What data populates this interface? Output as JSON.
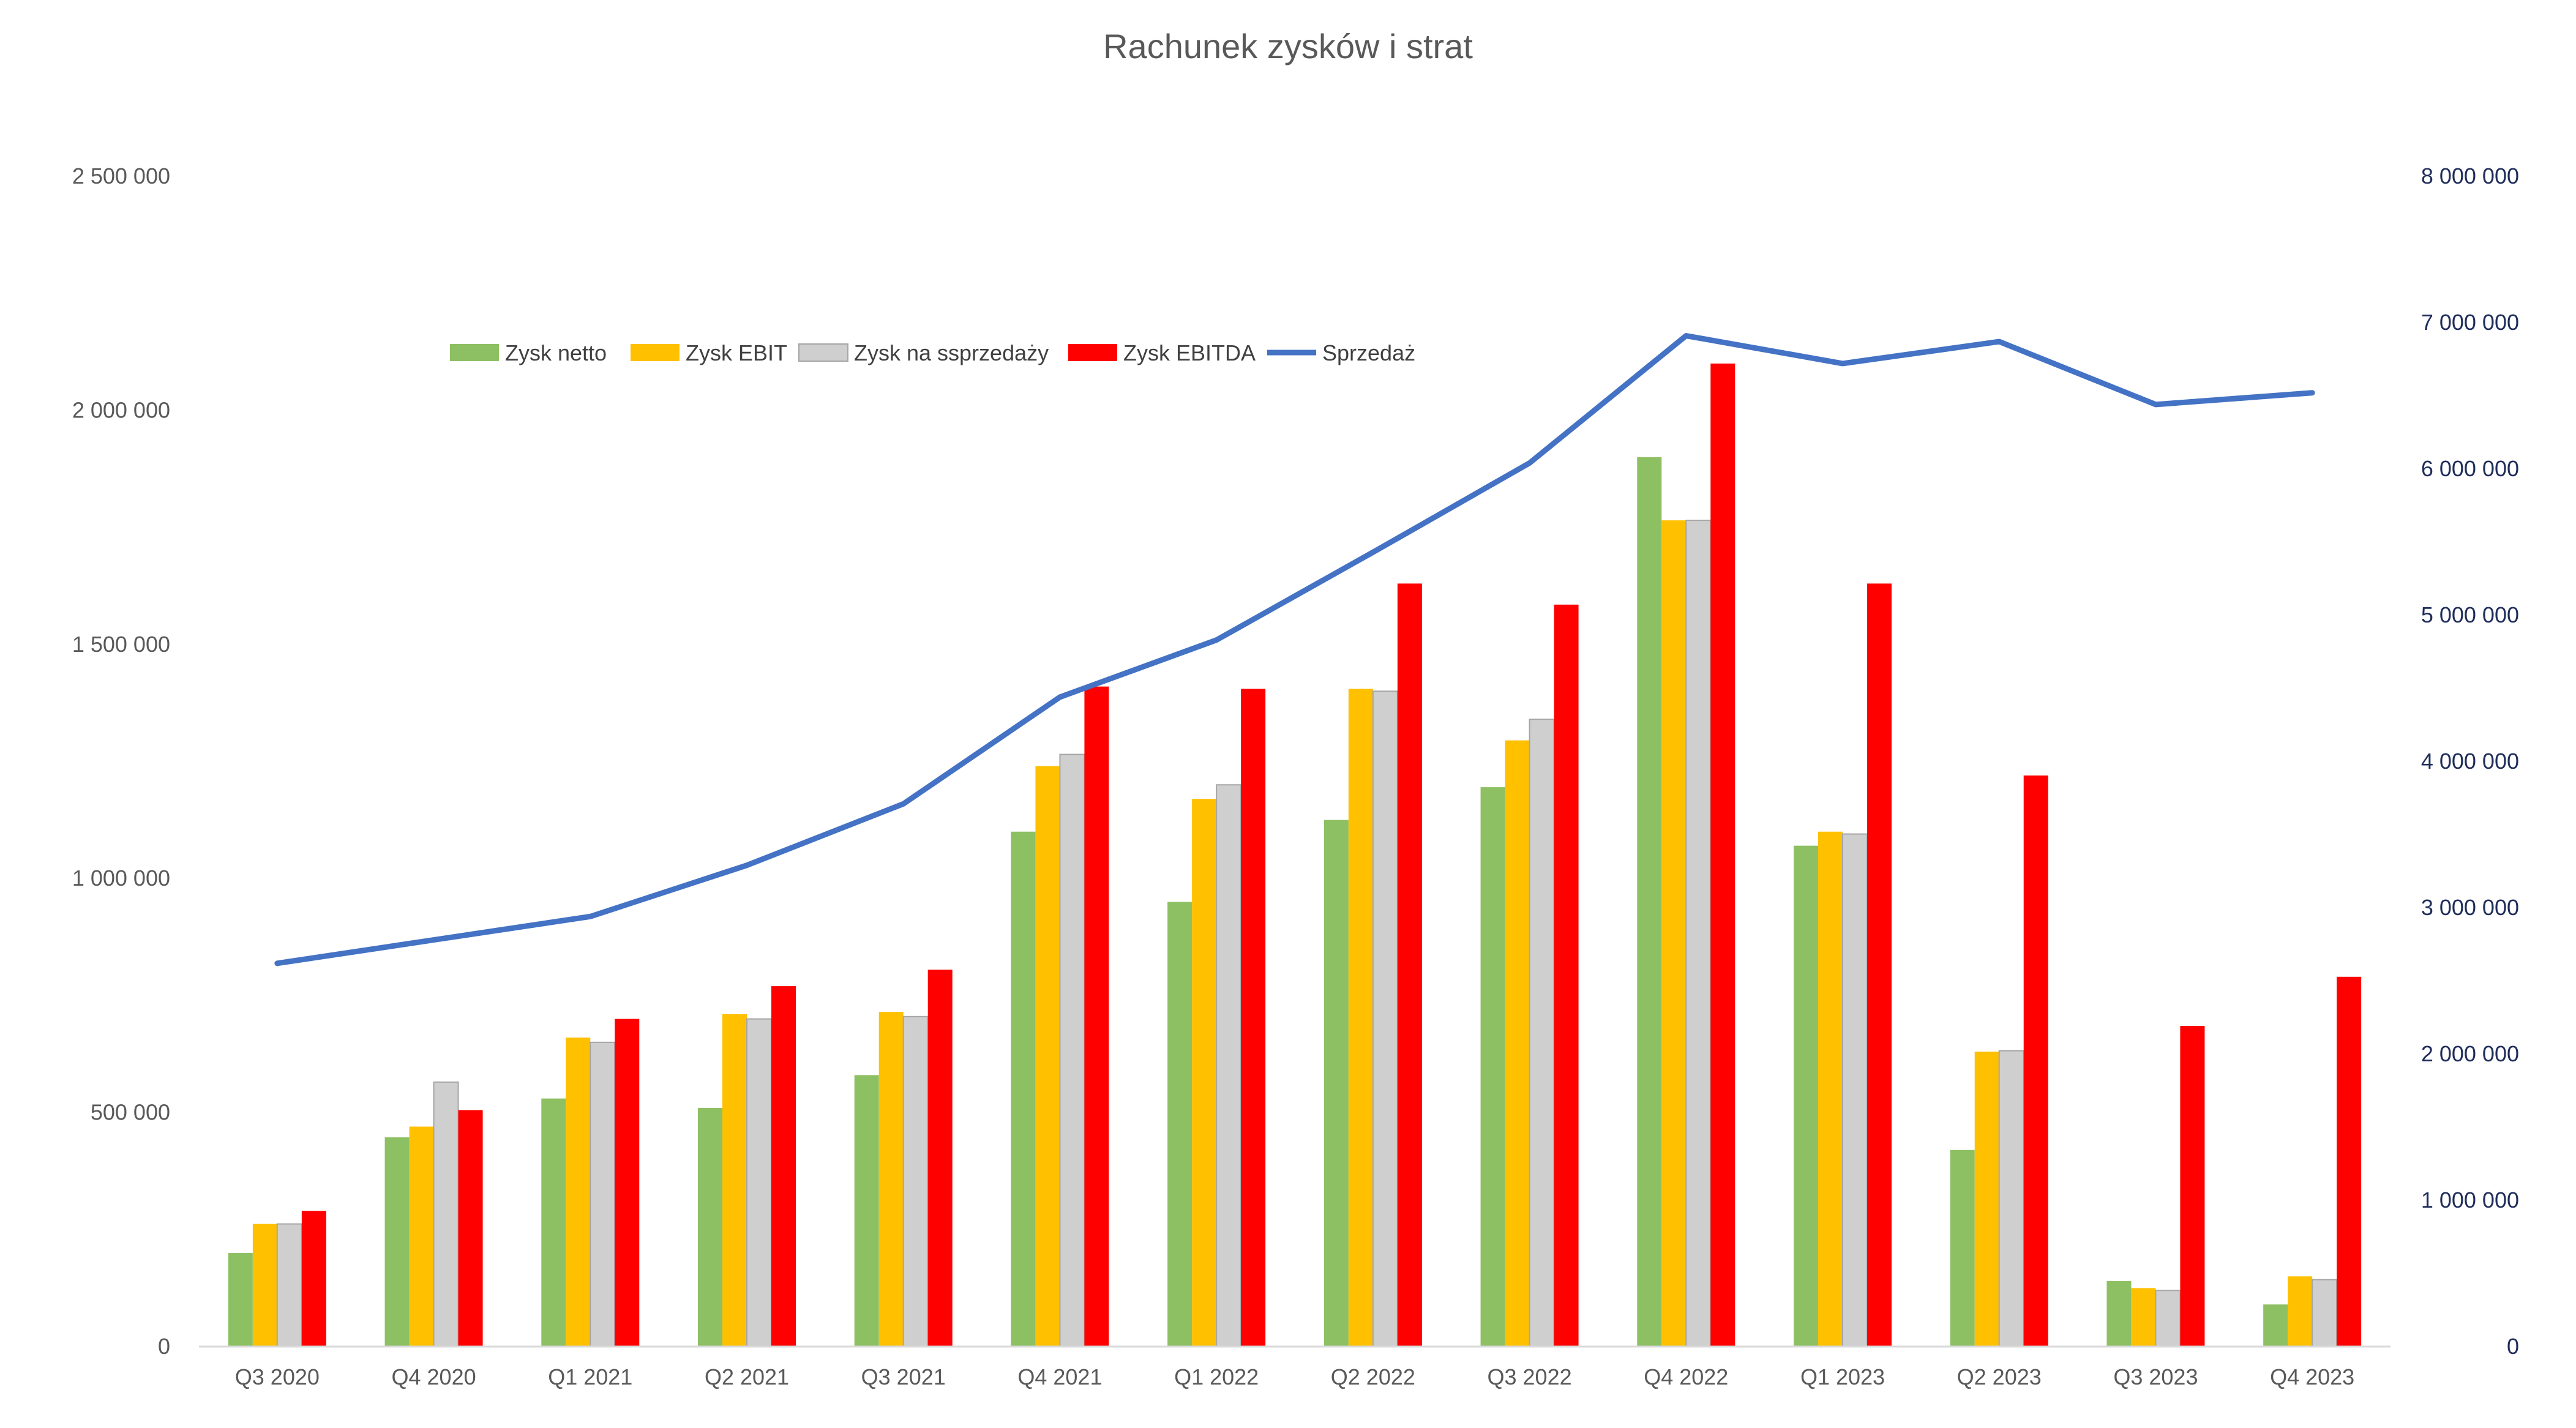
{
  "chart_data": {
    "type": "bar",
    "title": "Rachunek zysków i strat",
    "categories": [
      "Q3 2020",
      "Q4 2020",
      "Q1 2021",
      "Q2 2021",
      "Q3 2021",
      "Q4 2021",
      "Q1 2022",
      "Q2 2022",
      "Q3 2022",
      "Q4 2022",
      "Q1 2023",
      "Q2 2023",
      "Q3 2023",
      "Q4 2023"
    ],
    "series": [
      {
        "name": "Zysk netto",
        "type": "bar",
        "axis": "left",
        "color": "#8dc063",
        "values": [
          200000,
          447000,
          530000,
          510000,
          580000,
          1100000,
          950000,
          1125000,
          1195000,
          1900000,
          1070000,
          420000,
          140000,
          90000
        ]
      },
      {
        "name": "Zysk EBIT",
        "type": "bar",
        "axis": "left",
        "color": "#ffc000",
        "values": [
          262000,
          470000,
          660000,
          710000,
          715000,
          1240000,
          1170000,
          1405000,
          1295000,
          1765000,
          1100000,
          630000,
          125000,
          150000
        ]
      },
      {
        "name": "Zysk na ssprzedaży",
        "type": "bar",
        "axis": "left",
        "color": "#d0cfcf",
        "values": [
          262000,
          565000,
          650000,
          700000,
          705000,
          1265000,
          1200000,
          1400000,
          1340000,
          1765000,
          1095000,
          632000,
          120000,
          143000
        ]
      },
      {
        "name": "Zysk EBITDA",
        "type": "bar",
        "axis": "left",
        "color": "#ff0000",
        "values": [
          290000,
          505000,
          700000,
          770000,
          805000,
          1410000,
          1405000,
          1630000,
          1585000,
          2100000,
          1630000,
          1220000,
          685000,
          790000
        ]
      },
      {
        "name": "Sprzedaż",
        "type": "line",
        "axis": "right",
        "color": "#4472c4",
        "values": [
          2620000,
          2780000,
          2940000,
          3290000,
          3710000,
          4440000,
          4830000,
          5430000,
          6040000,
          6910000,
          6720000,
          6870000,
          6440000,
          6520000
        ]
      }
    ],
    "y_left": {
      "range": [
        0,
        2500000
      ],
      "ticks": [
        "0",
        "500 000",
        "1 000 000",
        "1 500 000",
        "2 000 000",
        "2 500 000"
      ],
      "tick_values": [
        0,
        500000,
        1000000,
        1500000,
        2000000,
        2500000
      ]
    },
    "y_right": {
      "range": [
        0,
        8000000
      ],
      "ticks": [
        "0",
        "1 000 000",
        "2 000 000",
        "3 000 000",
        "4 000 000",
        "5 000 000",
        "6 000 000",
        "7 000 000",
        "8 000 000"
      ],
      "tick_values": [
        0,
        1000000,
        2000000,
        3000000,
        4000000,
        5000000,
        6000000,
        7000000,
        8000000
      ]
    },
    "grid": false,
    "legend_position": "top-center"
  }
}
